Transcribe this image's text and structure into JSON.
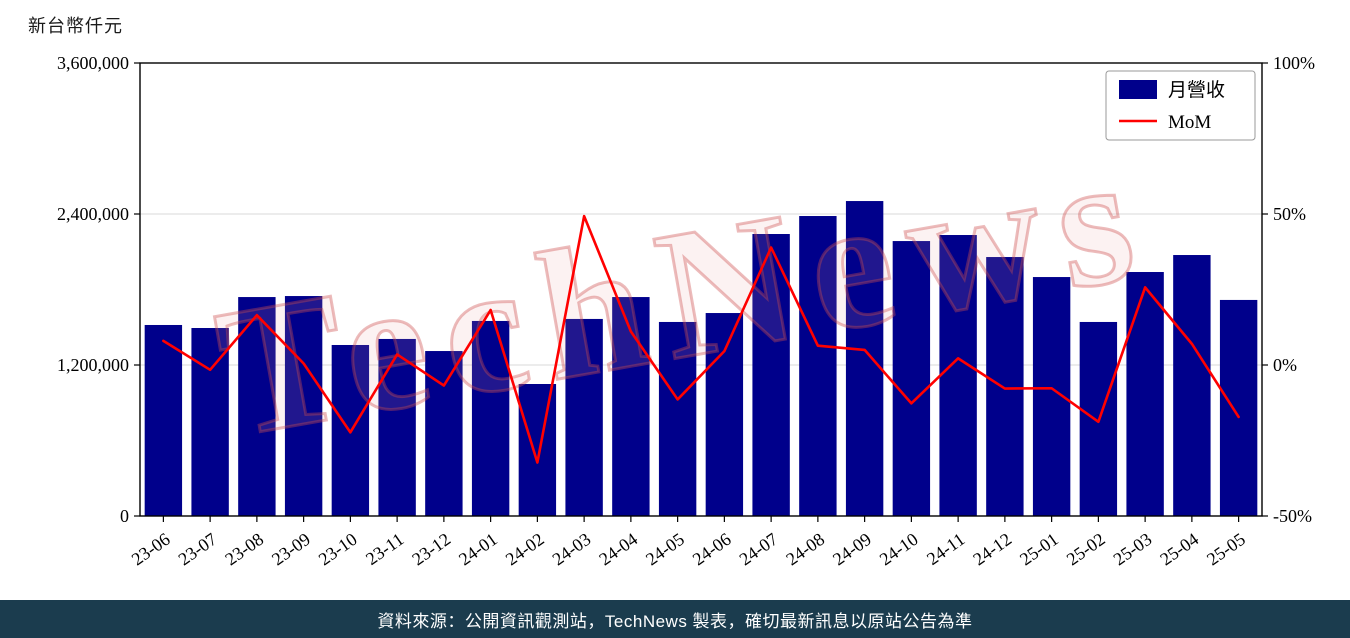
{
  "page": {
    "background": "#ffffff"
  },
  "chart": {
    "unit_label": "新台幣仟元"
  },
  "watermark": {
    "text": "TechNews",
    "fill": "rgba(235,160,160,0.14)",
    "stroke": "rgba(205,75,75,0.38)",
    "rotation_deg": -10
  },
  "footer": {
    "text": "資料來源：公開資訊觀測站，TechNews 製表，確切最新訊息以原站公告為準",
    "background": "#1b3c4e",
    "color": "#ffffff"
  },
  "chart_data": {
    "type": "bar+line",
    "title": "",
    "categories": [
      "23-06",
      "23-07",
      "23-08",
      "23-09",
      "23-10",
      "23-11",
      "23-12",
      "24-01",
      "24-02",
      "24-03",
      "24-04",
      "24-05",
      "24-06",
      "24-07",
      "24-08",
      "24-09",
      "24-10",
      "24-11",
      "24-12",
      "25-01",
      "25-02",
      "25-03",
      "25-04",
      "25-05"
    ],
    "series": [
      {
        "name": "月營收",
        "type": "bar",
        "axis": "left",
        "color": "#00008b",
        "values": [
          1518000,
          1494000,
          1740000,
          1748000,
          1359000,
          1407000,
          1311000,
          1550000,
          1049000,
          1566000,
          1740000,
          1542000,
          1613000,
          2241000,
          2384000,
          2503000,
          2185000,
          2233000,
          2058000,
          1899000,
          1542000,
          1939000,
          2074000,
          1717000
        ]
      },
      {
        "name": "MoM",
        "type": "line",
        "axis": "right",
        "color": "#ff0000",
        "values": [
          8.0,
          -1.6,
          16.5,
          0.5,
          -22.3,
          3.5,
          -6.8,
          18.2,
          -32.3,
          49.3,
          11.1,
          -11.4,
          4.6,
          38.9,
          6.4,
          5.0,
          -12.7,
          2.2,
          -7.8,
          -7.7,
          -18.8,
          25.7,
          7.0,
          -17.2
        ]
      }
    ],
    "left_axis": {
      "label": "新台幣仟元",
      "range": [
        0,
        3600000
      ],
      "ticks": [
        0,
        1200000,
        2400000,
        3600000
      ],
      "tick_labels": [
        "0",
        "1,200,000",
        "2,400,000",
        "3,600,000"
      ]
    },
    "right_axis": {
      "label": "MoM",
      "range": [
        -50,
        100
      ],
      "ticks": [
        -50,
        0,
        50,
        100
      ],
      "tick_labels": [
        "-50%",
        "0%",
        "50%",
        "100%"
      ]
    },
    "legend": {
      "position": "top-right",
      "entries": [
        "月營收",
        "MoM"
      ]
    },
    "grid": true,
    "grid_color": "#d9d9d9",
    "frame_color": "#000000"
  }
}
